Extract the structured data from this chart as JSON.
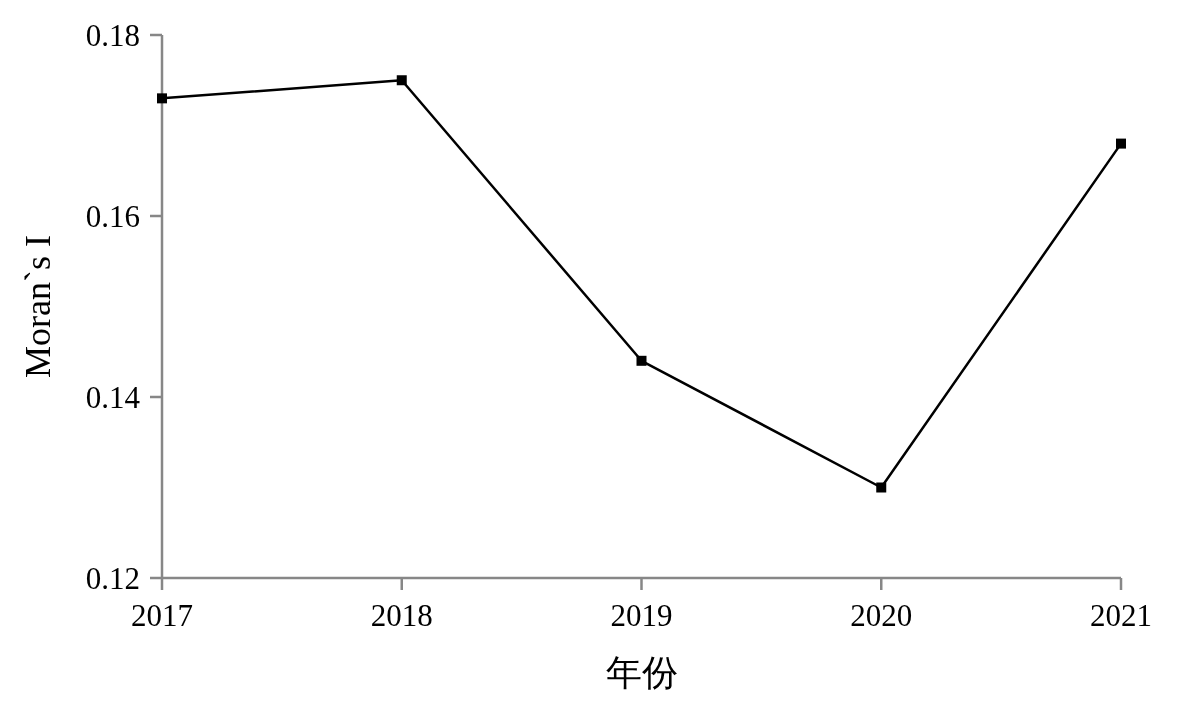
{
  "chart_data": {
    "type": "line",
    "xlabel": "年份",
    "ylabel": "Moran`s I",
    "categories": [
      "2017",
      "2018",
      "2019",
      "2020",
      "2021"
    ],
    "series": [
      {
        "color": "#000000",
        "values": [
          0.173,
          0.175,
          0.144,
          0.13,
          0.168
        ]
      }
    ],
    "ylim": [
      0.12,
      0.18
    ],
    "yticks": [
      0.12,
      0.14,
      0.16,
      0.18
    ],
    "marker": "square",
    "grid": false
  }
}
